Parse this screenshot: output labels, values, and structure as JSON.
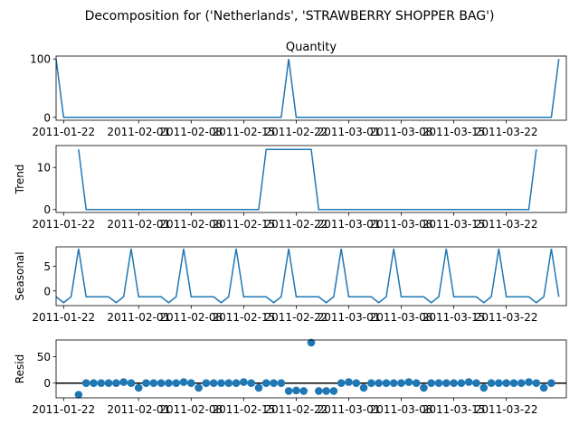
{
  "figure": {
    "suptitle": "Decomposition for ('Netherlands', 'STRAWBERRY SHOPPER BAG')"
  },
  "colors": {
    "series": "#1f77b4",
    "axes": "#000000",
    "zero_line": "#000000"
  },
  "chart_data": [
    {
      "type": "line",
      "title": "Quantity",
      "ylabel": "",
      "ylim": [
        -5,
        105
      ],
      "yticks": [
        "0",
        "100"
      ],
      "xlim": [
        "2011-01-21",
        "2011-03-30"
      ],
      "x_start": "2011-01-21",
      "xtick_labels": [
        "2011-01-22",
        "2011-02-01",
        "2011-02-08",
        "2011-02-15",
        "2011-02-22",
        "2011-03-01",
        "2011-03-08",
        "2011-03-15",
        "2011-03-22"
      ],
      "series": [
        {
          "values": [
            100,
            0,
            0,
            0,
            0,
            0,
            0,
            0,
            0,
            0,
            0,
            0,
            0,
            0,
            0,
            0,
            0,
            0,
            0,
            0,
            0,
            0,
            0,
            0,
            0,
            0,
            0,
            0,
            0,
            0,
            0,
            100,
            0,
            0,
            0,
            0,
            0,
            0,
            0,
            0,
            0,
            0,
            0,
            0,
            0,
            0,
            0,
            0,
            0,
            0,
            0,
            0,
            0,
            0,
            0,
            0,
            0,
            0,
            0,
            0,
            0,
            0,
            0,
            0,
            0,
            0,
            0,
            100
          ]
        }
      ]
    },
    {
      "type": "line",
      "title": "",
      "ylabel": "Trend",
      "ylim": [
        -0.7,
        15.2
      ],
      "yticks": [
        "0",
        "10"
      ],
      "xlim": [
        "2011-01-21",
        "2011-03-30"
      ],
      "x_start": "2011-01-21",
      "xtick_labels": [
        "2011-01-22",
        "2011-02-01",
        "2011-02-08",
        "2011-02-15",
        "2011-02-22",
        "2011-03-01",
        "2011-03-08",
        "2011-03-15",
        "2011-03-22"
      ],
      "series": [
        {
          "values": [
            null,
            null,
            null,
            14.3,
            0,
            0,
            0,
            0,
            0,
            0,
            0,
            0,
            0,
            0,
            0,
            0,
            0,
            0,
            0,
            0,
            0,
            0,
            0,
            0,
            0,
            0,
            0,
            0,
            14.3,
            14.3,
            14.3,
            14.3,
            14.3,
            14.3,
            14.3,
            0,
            0,
            0,
            0,
            0,
            0,
            0,
            0,
            0,
            0,
            0,
            0,
            0,
            0,
            0,
            0,
            0,
            0,
            0,
            0,
            0,
            0,
            0,
            0,
            0,
            0,
            0,
            0,
            0,
            14.3,
            null,
            null,
            null
          ]
        }
      ]
    },
    {
      "type": "line",
      "title": "",
      "ylabel": "Seasonal",
      "ylim": [
        -3.0,
        9.0
      ],
      "yticks": [
        "0",
        "5"
      ],
      "xlim": [
        "2011-01-21",
        "2011-03-30"
      ],
      "x_start": "2011-01-21",
      "xtick_labels": [
        "2011-01-22",
        "2011-02-01",
        "2011-02-08",
        "2011-02-15",
        "2011-02-22",
        "2011-03-01",
        "2011-03-08",
        "2011-03-15",
        "2011-03-22"
      ],
      "series": [
        {
          "values": [
            -1.2,
            -2.4,
            -1.2,
            8.6,
            -1.2,
            -1.2,
            -1.2,
            -1.2,
            -2.4,
            -1.2,
            8.6,
            -1.2,
            -1.2,
            -1.2,
            -1.2,
            -2.4,
            -1.2,
            8.6,
            -1.2,
            -1.2,
            -1.2,
            -1.2,
            -2.4,
            -1.2,
            8.6,
            -1.2,
            -1.2,
            -1.2,
            -1.2,
            -2.4,
            -1.2,
            8.6,
            -1.2,
            -1.2,
            -1.2,
            -1.2,
            -2.4,
            -1.2,
            8.6,
            -1.2,
            -1.2,
            -1.2,
            -1.2,
            -2.4,
            -1.2,
            8.6,
            -1.2,
            -1.2,
            -1.2,
            -1.2,
            -2.4,
            -1.2,
            8.6,
            -1.2,
            -1.2,
            -1.2,
            -1.2,
            -2.4,
            -1.2,
            8.6,
            -1.2,
            -1.2,
            -1.2,
            -1.2,
            -2.4,
            -1.2,
            8.6,
            -1.2
          ]
        }
      ]
    },
    {
      "type": "scatter",
      "title": "",
      "ylabel": "Resid",
      "ylim": [
        -28,
        82
      ],
      "yticks": [
        "0",
        "50"
      ],
      "zero_line": true,
      "xlim": [
        "2011-01-21",
        "2011-03-30"
      ],
      "x_start": "2011-01-21",
      "xtick_labels": [
        "2011-01-22",
        "2011-02-01",
        "2011-02-08",
        "2011-02-15",
        "2011-02-22",
        "2011-03-01",
        "2011-03-08",
        "2011-03-15",
        "2011-03-22"
      ],
      "series": [
        {
          "values": [
            null,
            null,
            null,
            -22,
            0,
            0,
            0,
            0,
            0,
            2,
            0,
            -9,
            0,
            0,
            0,
            0,
            0,
            2,
            0,
            -9,
            0,
            0,
            0,
            0,
            0,
            2,
            0,
            -9,
            0,
            0,
            0,
            -15,
            -14,
            -15,
            77,
            -15,
            -15,
            -15,
            0,
            2,
            0,
            -9,
            0,
            0,
            0,
            0,
            0,
            2,
            0,
            -9,
            0,
            0,
            0,
            0,
            0,
            2,
            0,
            -9,
            0,
            0,
            0,
            0,
            0,
            2,
            0,
            -9,
            0,
            null
          ]
        }
      ]
    }
  ]
}
